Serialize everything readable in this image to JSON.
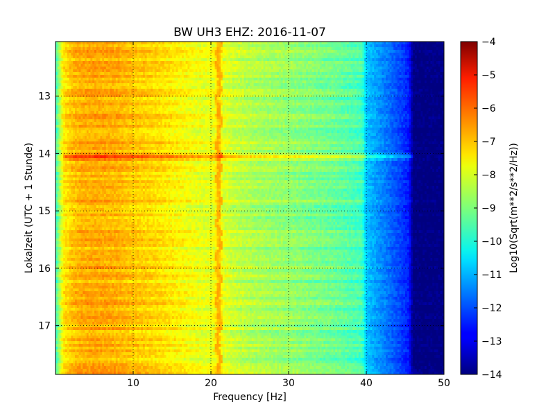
{
  "chart_data": {
    "type": "heatmap",
    "title": "BW UH3 EHZ: 2016-11-07",
    "xlabel": "Frequency [Hz]",
    "ylabel": "Lokalzeit (UTC + 1 Stunde)",
    "xlim": [
      0,
      50
    ],
    "ylim": [
      17.85,
      12.05
    ],
    "y_inverted": true,
    "grid": true,
    "x_ticks": [
      10,
      20,
      30,
      40,
      50
    ],
    "y_ticks": [
      13,
      14,
      15,
      16,
      17
    ],
    "colormap": "jet",
    "colorbar": {
      "label": "Log10(Sqrt(m**2/s**2/Hz))",
      "range": [
        -14,
        -4
      ],
      "ticks": [
        -4,
        -5,
        -6,
        -7,
        -8,
        -9,
        -10,
        -11,
        -12,
        -13,
        -14
      ]
    },
    "spectral_profile": {
      "frequency_hz": [
        0,
        0.5,
        1,
        2,
        3,
        5,
        8,
        10,
        13,
        15,
        17,
        19,
        20.5,
        21,
        21.5,
        23,
        25,
        28,
        30,
        33,
        36,
        39.5,
        40,
        42,
        44,
        45.5,
        46,
        50
      ],
      "level": [
        -9.8,
        -8.6,
        -7.6,
        -7.2,
        -7.0,
        -6.9,
        -7.0,
        -7.2,
        -7.4,
        -7.6,
        -7.8,
        -8.0,
        -7.9,
        -7.0,
        -8.0,
        -8.3,
        -8.5,
        -8.7,
        -8.8,
        -9.0,
        -9.2,
        -9.6,
        -10.8,
        -11.4,
        -12.0,
        -12.5,
        -14.0,
        -14.0
      ]
    },
    "annotations": [
      {
        "type": "narrowband_line",
        "frequency_hz": 21,
        "level": -7.0
      },
      {
        "type": "broadband_event",
        "time": 14.05,
        "level_boost": 1.0
      }
    ]
  }
}
